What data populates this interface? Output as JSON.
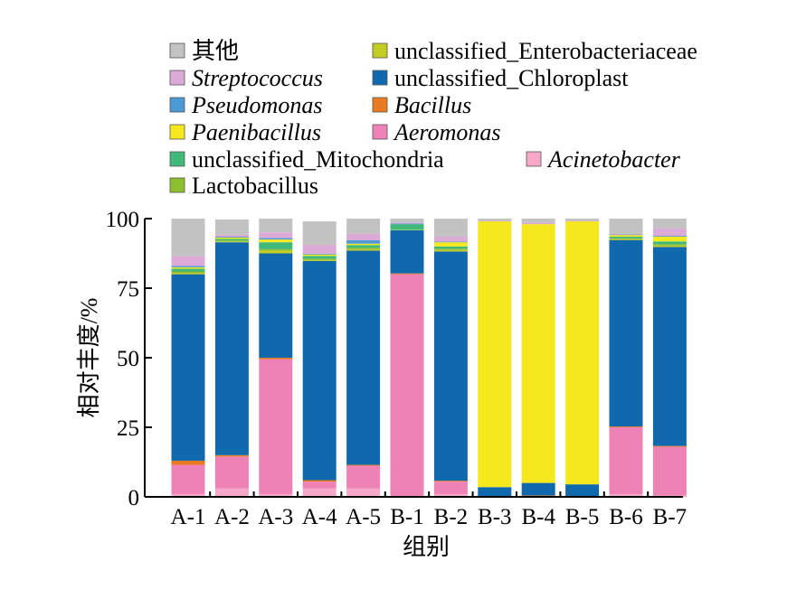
{
  "chart_data": {
    "type": "bar",
    "stacked": true,
    "categories": [
      "A-1",
      "A-2",
      "A-3",
      "A-4",
      "A-5",
      "B-1",
      "B-2",
      "B-3",
      "B-4",
      "B-5",
      "B-6",
      "B-7"
    ],
    "xlabel": "组别",
    "ylabel": "相对丰度/%",
    "ylim": [
      0,
      100
    ],
    "yticks": [
      "0",
      "25",
      "50",
      "75",
      "100"
    ],
    "legend_placement": "top",
    "series": [
      {
        "name": "Acinetobacter",
        "italic": true,
        "color": "#f7a8c8",
        "values": [
          1,
          3,
          1,
          3,
          3,
          0,
          1,
          0,
          0,
          0,
          1,
          0.5
        ]
      },
      {
        "name": "Aeromonas",
        "italic": true,
        "color": "#ee82b6",
        "values": [
          10.5,
          11.5,
          48.5,
          2.5,
          8.2,
          80,
          4.5,
          0,
          0,
          0,
          24,
          17.5
        ]
      },
      {
        "name": "Bacillus",
        "italic": true,
        "color": "#e87a22",
        "values": [
          1.5,
          0.5,
          0.5,
          0.5,
          0.3,
          0.3,
          0.3,
          0,
          0.5,
          0,
          0.3,
          0.3
        ]
      },
      {
        "name": "unclassified_Chloroplast",
        "italic": false,
        "color": "#1169ad",
        "values": [
          67,
          76.5,
          37.5,
          78.8,
          77,
          15.5,
          82.4,
          3.5,
          4.5,
          4.5,
          67,
          71.5
        ]
      },
      {
        "name": "unclassified_Enterobacteriaceae",
        "italic": false,
        "color": "#c3cc22",
        "values": [
          0.5,
          0.3,
          1,
          0.3,
          0.5,
          0.1,
          0.5,
          0,
          0,
          0,
          0.3,
          0.5
        ]
      },
      {
        "name": "Lactobacillus",
        "italic": false,
        "color": "#8cbe2f",
        "values": [
          0.5,
          0.3,
          0.5,
          0.5,
          0.5,
          0.1,
          0.5,
          0,
          0,
          0,
          0.3,
          0.5
        ]
      },
      {
        "name": "unclassified_Mitochondria",
        "italic": false,
        "color": "#40b87a",
        "values": [
          1,
          0.6,
          2.5,
          1,
          1,
          2,
          0.8,
          0,
          0,
          0,
          0.6,
          1
        ]
      },
      {
        "name": "Paenibacillus",
        "italic": true,
        "color": "#f5e81c",
        "values": [
          0.5,
          0.5,
          1,
          0.5,
          0.5,
          0,
          1.5,
          95.5,
          93,
          94.5,
          0.6,
          1.7
        ]
      },
      {
        "name": "Pseudomonas",
        "italic": true,
        "color": "#4a9ad8",
        "values": [
          0.5,
          0.3,
          0.5,
          0.3,
          1.2,
          0.2,
          0.2,
          0,
          0,
          0,
          0.2,
          0.3
        ]
      },
      {
        "name": "Streptococcus",
        "italic": true,
        "color": "#dcaad6",
        "values": [
          3.5,
          0.7,
          2,
          3.2,
          2.3,
          0.3,
          1.8,
          0.2,
          0.5,
          0.2,
          0.2,
          2.7
        ]
      },
      {
        "name": "其他",
        "italic": false,
        "color": "#c2c2c2",
        "values": [
          13.5,
          5.5,
          5,
          8.4,
          5.5,
          1.5,
          6.5,
          0.8,
          1.5,
          0.8,
          5.5,
          3.5
        ]
      }
    ],
    "legend": [
      {
        "series": "其他"
      },
      {
        "series": "unclassified_Enterobacteriaceae"
      },
      {
        "series": "Streptococcus"
      },
      {
        "series": "unclassified_Chloroplast"
      },
      {
        "series": "Pseudomonas"
      },
      {
        "series": "Bacillus"
      },
      {
        "series": "Paenibacillus"
      },
      {
        "series": "Aeromonas"
      },
      {
        "series": "unclassified_Mitochondria"
      },
      {
        "series": "Acinetobacter"
      },
      {
        "series": "Lactobacillus"
      }
    ]
  }
}
